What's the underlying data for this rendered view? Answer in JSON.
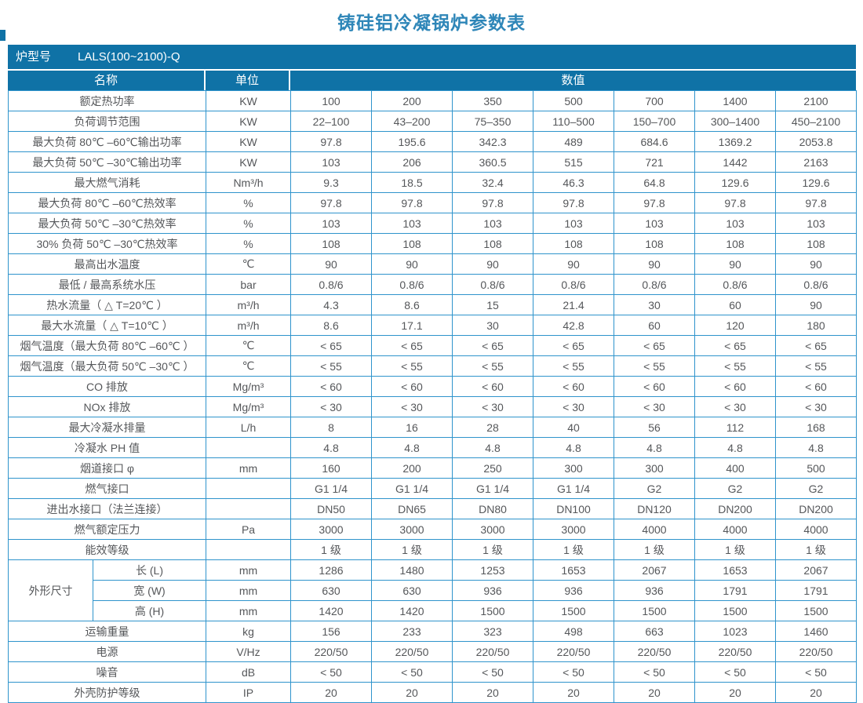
{
  "page_title": "铸硅铝冷凝锅炉参数表",
  "colors": {
    "header_blue": "#0f72a6",
    "border_blue": "#2f94cc",
    "title_blue": "#2e86b8",
    "text_gray": "#55575a"
  },
  "model_bar": {
    "label": "炉型号",
    "value": "LALS(100~2100)-Q"
  },
  "columns": {
    "name": "名称",
    "unit": "单位",
    "value": "数值"
  },
  "dimension_group_label": "外形尺寸",
  "table": {
    "rows": [
      {
        "label": "额定热功率",
        "unit": "KW",
        "values": [
          "100",
          "200",
          "350",
          "500",
          "700",
          "1400",
          "2100"
        ]
      },
      {
        "label": "负荷调节范围",
        "unit": "KW",
        "values": [
          "22–100",
          "43–200",
          "75–350",
          "110–500",
          "150–700",
          "300–1400",
          "450–2100"
        ]
      },
      {
        "label": "最大负荷 80℃ –60℃输出功率",
        "unit": "KW",
        "values": [
          "97.8",
          "195.6",
          "342.3",
          "489",
          "684.6",
          "1369.2",
          "2053.8"
        ]
      },
      {
        "label": "最大负荷 50℃ –30℃输出功率",
        "unit": "KW",
        "values": [
          "103",
          "206",
          "360.5",
          "515",
          "721",
          "1442",
          "2163"
        ]
      },
      {
        "label": "最大燃气消耗",
        "unit": "Nm³/h",
        "values": [
          "9.3",
          "18.5",
          "32.4",
          "46.3",
          "64.8",
          "129.6",
          "129.6"
        ]
      },
      {
        "label": "最大负荷 80℃ –60℃热效率",
        "unit": "%",
        "values": [
          "97.8",
          "97.8",
          "97.8",
          "97.8",
          "97.8",
          "97.8",
          "97.8"
        ]
      },
      {
        "label": "最大负荷 50℃ –30℃热效率",
        "unit": "%",
        "values": [
          "103",
          "103",
          "103",
          "103",
          "103",
          "103",
          "103"
        ]
      },
      {
        "label": "30% 负荷 50℃ –30℃热效率",
        "unit": "%",
        "values": [
          "108",
          "108",
          "108",
          "108",
          "108",
          "108",
          "108"
        ]
      },
      {
        "label": "最高出水温度",
        "unit": "℃",
        "values": [
          "90",
          "90",
          "90",
          "90",
          "90",
          "90",
          "90"
        ]
      },
      {
        "label": "最低 / 最高系统水压",
        "unit": "bar",
        "values": [
          "0.8/6",
          "0.8/6",
          "0.8/6",
          "0.8/6",
          "0.8/6",
          "0.8/6",
          "0.8/6"
        ]
      },
      {
        "label": "热水流量（ △ T=20℃ ）",
        "unit": "m³/h",
        "values": [
          "4.3",
          "8.6",
          "15",
          "21.4",
          "30",
          "60",
          "90"
        ]
      },
      {
        "label": "最大水流量（ △ T=10℃ ）",
        "unit": "m³/h",
        "values": [
          "8.6",
          "17.1",
          "30",
          "42.8",
          "60",
          "120",
          "180"
        ]
      },
      {
        "label": "烟气温度（最大负荷 80℃ –60℃ ）",
        "unit": "℃",
        "values": [
          "< 65",
          "< 65",
          "< 65",
          "< 65",
          "< 65",
          "< 65",
          "< 65"
        ]
      },
      {
        "label": "烟气温度（最大负荷 50℃ –30℃ ）",
        "unit": "℃",
        "values": [
          "< 55",
          "< 55",
          "< 55",
          "< 55",
          "< 55",
          "< 55",
          "< 55"
        ]
      },
      {
        "label": "CO 排放",
        "unit": "Mg/m³",
        "values": [
          "< 60",
          "< 60",
          "< 60",
          "< 60",
          "< 60",
          "< 60",
          "< 60"
        ]
      },
      {
        "label": "NOx 排放",
        "unit": "Mg/m³",
        "values": [
          "< 30",
          "< 30",
          "< 30",
          "< 30",
          "< 30",
          "< 30",
          "< 30"
        ]
      },
      {
        "label": "最大冷凝水排量",
        "unit": "L/h",
        "values": [
          "8",
          "16",
          "28",
          "40",
          "56",
          "112",
          "168"
        ]
      },
      {
        "label": "冷凝水 PH 值",
        "unit": "",
        "values": [
          "4.8",
          "4.8",
          "4.8",
          "4.8",
          "4.8",
          "4.8",
          "4.8"
        ]
      },
      {
        "label": "烟道接口 φ",
        "unit": "mm",
        "values": [
          "160",
          "200",
          "250",
          "300",
          "300",
          "400",
          "500"
        ]
      },
      {
        "label": "燃气接口",
        "unit": "",
        "values": [
          "G1 1/4",
          "G1 1/4",
          "G1 1/4",
          "G1 1/4",
          "G2",
          "G2",
          "G2"
        ]
      },
      {
        "label": "进出水接口（法兰连接）",
        "unit": "",
        "values": [
          "DN50",
          "DN65",
          "DN80",
          "DN100",
          "DN120",
          "DN200",
          "DN200"
        ]
      },
      {
        "label": "燃气额定压力",
        "unit": "Pa",
        "values": [
          "3000",
          "3000",
          "3000",
          "3000",
          "4000",
          "4000",
          "4000"
        ]
      },
      {
        "label": "能效等级",
        "unit": "",
        "values": [
          "1 级",
          "1 级",
          "1 级",
          "1 级",
          "1 级",
          "1 级",
          "1 级"
        ]
      },
      {
        "label": "长 (L)",
        "unit": "mm",
        "group": "start",
        "values": [
          "1286",
          "1480",
          "1253",
          "1653",
          "2067",
          "1653",
          "2067"
        ]
      },
      {
        "label": "宽 (W)",
        "unit": "mm",
        "group": "mid",
        "values": [
          "630",
          "630",
          "936",
          "936",
          "936",
          "1791",
          "1791"
        ]
      },
      {
        "label": "高 (H)",
        "unit": "mm",
        "group": "mid",
        "values": [
          "1420",
          "1420",
          "1500",
          "1500",
          "1500",
          "1500",
          "1500"
        ]
      },
      {
        "label": "运输重量",
        "unit": "kg",
        "values": [
          "156",
          "233",
          "323",
          "498",
          "663",
          "1023",
          "1460"
        ]
      },
      {
        "label": "电源",
        "unit": "V/Hz",
        "values": [
          "220/50",
          "220/50",
          "220/50",
          "220/50",
          "220/50",
          "220/50",
          "220/50"
        ]
      },
      {
        "label": "噪音",
        "unit": "dB",
        "values": [
          "< 50",
          "< 50",
          "< 50",
          "< 50",
          "< 50",
          "< 50",
          "< 50"
        ]
      },
      {
        "label": "外壳防护等级",
        "unit": "IP",
        "values": [
          "20",
          "20",
          "20",
          "20",
          "20",
          "20",
          "20"
        ]
      }
    ]
  }
}
